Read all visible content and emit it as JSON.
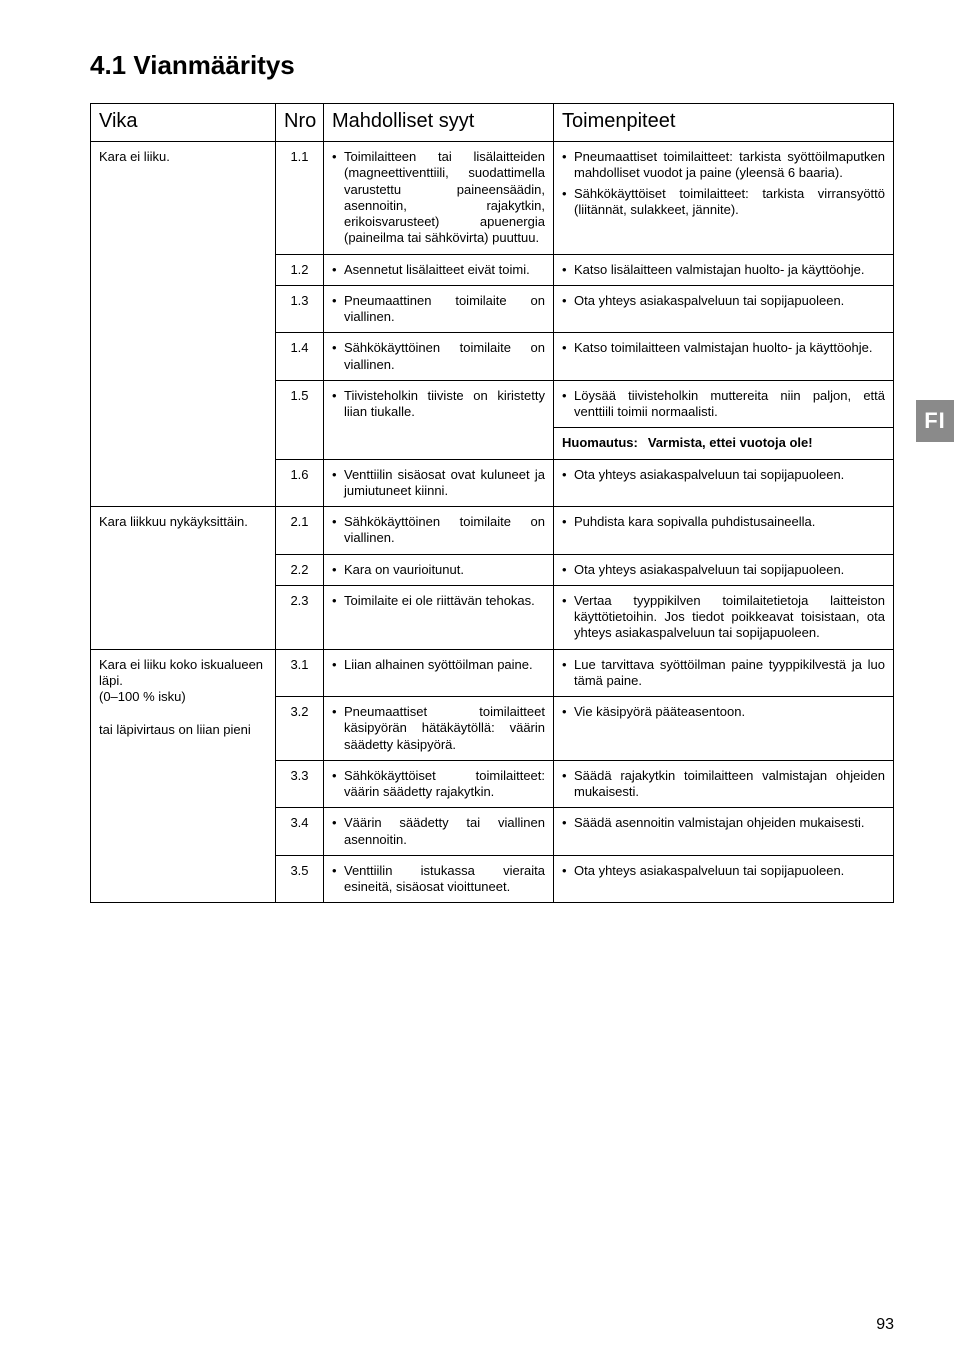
{
  "heading": "4.1 Vianmääritys",
  "side_tab": "FI",
  "page_number": "93",
  "headers": {
    "c1": "Vika",
    "c2": "Nro",
    "c3": "Mahdolliset syyt",
    "c4": "Toimenpiteet"
  },
  "groups": [
    {
      "vika": "Kara ei liiku.",
      "rows": [
        {
          "nro": "1.1",
          "syyt": [
            "Toimilaitteen tai lisälaitteiden (magneettiventtiili, suodattimella varustettu paineensäädin, asennoitin, rajakytkin, erikoisvarusteet) apuenergia (paineilma tai sähkövirta) puuttuu."
          ],
          "toimenpiteet": [
            "Pneumaattiset toimilaitteet: tarkista syöttöilmaputken mahdolliset vuodot ja paine (yleensä 6 baaria).",
            "Sähkökäyttöiset toimilaitteet: tarkista virransyöttö (liitännät, sulakkeet, jännite)."
          ]
        },
        {
          "nro": "1.2",
          "syyt": [
            "Asennetut lisälaitteet eivät toimi."
          ],
          "toimenpiteet": [
            "Katso lisälaitteen valmistajan huolto- ja käyttöohje."
          ]
        },
        {
          "nro": "1.3",
          "syyt": [
            "Pneumaattinen toimilaite on viallinen."
          ],
          "toimenpiteet": [
            "Ota yhteys asiakaspalveluun tai sopijapuoleen."
          ]
        },
        {
          "nro": "1.4",
          "syyt": [
            "Sähkökäyttöinen toimilaite on viallinen."
          ],
          "toimenpiteet": [
            "Katso toimilaitteen valmistajan huolto- ja käyttöohje."
          ]
        },
        {
          "nro": "1.5",
          "syyt": [
            "Tiivisteholkin tiiviste on kiristetty liian tiukalle."
          ],
          "toimenpiteet": [
            "Löysää tiivisteholkin muttereita niin paljon, että venttiili toimii normaalisti."
          ],
          "note_label": "Huomautus:",
          "note_text": "Varmista, ettei vuotoja ole!"
        },
        {
          "nro": "1.6",
          "syyt": [
            "Venttiilin sisäosat ovat kuluneet ja jumiutuneet kiinni."
          ],
          "toimenpiteet": [
            "Ota yhteys asiakaspalveluun tai sopijapuoleen."
          ]
        }
      ]
    },
    {
      "vika": "Kara liikkuu nykäyksittäin.",
      "rows": [
        {
          "nro": "2.1",
          "syyt": [
            "Sähkökäyttöinen toimilaite on viallinen."
          ],
          "toimenpiteet": [
            "Puhdista kara sopivalla puhdistusaineella."
          ]
        },
        {
          "nro": "2.2",
          "syyt": [
            "Kara on vaurioitunut."
          ],
          "toimenpiteet": [
            "Ota yhteys asiakaspalveluun tai sopijapuoleen."
          ]
        },
        {
          "nro": "2.3",
          "syyt": [
            "Toimilaite ei ole riittävän tehokas."
          ],
          "toimenpiteet": [
            "Vertaa tyyppikilven toimilaitetietoja laitteiston käyttötietoihin. Jos tiedot poikkeavat toisistaan, ota yhteys asiakaspalveluun tai sopijapuoleen."
          ]
        }
      ]
    },
    {
      "vika": "Kara ei liiku koko iskualueen läpi.\n(0–100 % isku)\n\ntai läpivirtaus on liian pieni",
      "rows": [
        {
          "nro": "3.1",
          "syyt": [
            "Liian alhainen syöttöilman paine."
          ],
          "toimenpiteet": [
            "Lue tarvittava syöttöilman paine tyyppikilvestä ja luo tämä paine."
          ]
        },
        {
          "nro": "3.2",
          "syyt": [
            "Pneumaattiset toimilaitteet käsipyörän hätäkäytöllä: väärin säädetty käsipyörä."
          ],
          "toimenpiteet": [
            "Vie käsipyörä pääteasentoon."
          ]
        },
        {
          "nro": "3.3",
          "syyt": [
            "Sähkökäyttöiset toimilaitteet: väärin säädetty rajakytkin."
          ],
          "toimenpiteet": [
            "Säädä rajakytkin toimilaitteen valmistajan ohjeiden mukaisesti."
          ]
        },
        {
          "nro": "3.4",
          "syyt": [
            "Väärin säädetty tai viallinen asennoitin."
          ],
          "toimenpiteet": [
            "Säädä asennoitin valmistajan ohjeiden mukaisesti."
          ]
        },
        {
          "nro": "3.5",
          "syyt": [
            "Venttiilin istukassa vieraita esineitä, sisäosat vioittuneet."
          ],
          "toimenpiteet": [
            "Ota yhteys asiakaspalveluun tai sopijapuoleen."
          ]
        }
      ]
    }
  ]
}
